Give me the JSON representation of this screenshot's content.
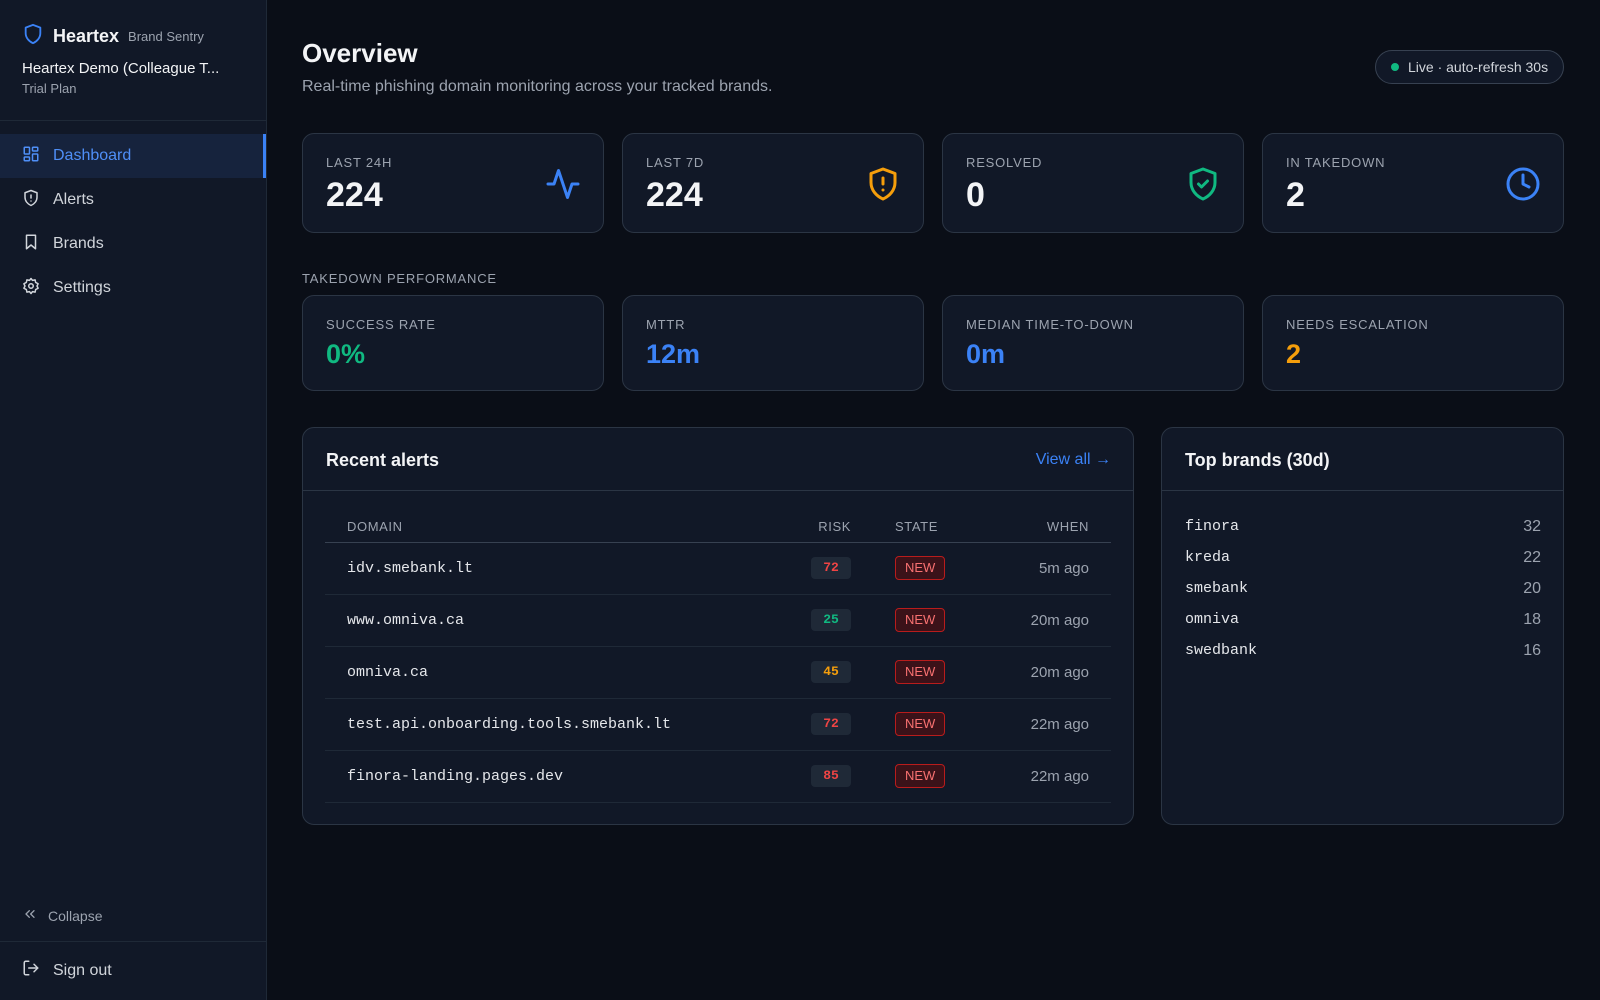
{
  "sidebar": {
    "brand_name": "Heartex",
    "brand_sub": "Brand Sentry",
    "org_name": "Heartex Demo (Colleague T...",
    "plan": "Trial Plan",
    "nav": [
      {
        "label": "Dashboard",
        "icon": "dashboard-icon",
        "active": true
      },
      {
        "label": "Alerts",
        "icon": "shield-alert-icon",
        "active": false
      },
      {
        "label": "Brands",
        "icon": "bookmark-icon",
        "active": false
      },
      {
        "label": "Settings",
        "icon": "gear-icon",
        "active": false
      }
    ],
    "collapse_label": "Collapse",
    "signout_label": "Sign out"
  },
  "header": {
    "title": "Overview",
    "subtitle": "Real-time phishing domain monitoring across your tracked brands.",
    "live_label": "Live · auto-refresh 30s"
  },
  "stats": [
    {
      "label": "LAST 24H",
      "value": "224",
      "icon": "activity-icon",
      "color": "#3b82f6"
    },
    {
      "label": "LAST 7D",
      "value": "224",
      "icon": "shield-alert-icon",
      "color": "#f59e0b"
    },
    {
      "label": "RESOLVED",
      "value": "0",
      "icon": "shield-check-icon",
      "color": "#10b981"
    },
    {
      "label": "IN TAKEDOWN",
      "value": "2",
      "icon": "clock-icon",
      "color": "#3b82f6"
    }
  ],
  "takedown": {
    "section_label": "TAKEDOWN PERFORMANCE",
    "metrics": [
      {
        "label": "SUCCESS RATE",
        "value": "0%",
        "color": "#10b981"
      },
      {
        "label": "MTTR",
        "value": "12m",
        "color": "#3b82f6"
      },
      {
        "label": "MEDIAN TIME-TO-DOWN",
        "value": "0m",
        "color": "#3b82f6"
      },
      {
        "label": "NEEDS ESCALATION",
        "value": "2",
        "color": "#f59e0b"
      }
    ]
  },
  "recent_alerts": {
    "title": "Recent alerts",
    "view_all": "View all →",
    "columns": [
      "DOMAIN",
      "RISK",
      "STATE",
      "WHEN"
    ],
    "rows": [
      {
        "domain": "idv.smebank.lt",
        "risk": "72",
        "risk_color": "#ef4444",
        "state": "NEW",
        "when": "5m ago"
      },
      {
        "domain": "www.omniva.ca",
        "risk": "25",
        "risk_color": "#10b981",
        "state": "NEW",
        "when": "20m ago"
      },
      {
        "domain": "omniva.ca",
        "risk": "45",
        "risk_color": "#f59e0b",
        "state": "NEW",
        "when": "20m ago"
      },
      {
        "domain": "test.api.onboarding.tools.smebank.lt",
        "risk": "72",
        "risk_color": "#ef4444",
        "state": "NEW",
        "when": "22m ago"
      },
      {
        "domain": "finora-landing.pages.dev",
        "risk": "85",
        "risk_color": "#ef4444",
        "state": "NEW",
        "when": "22m ago"
      }
    ]
  },
  "top_brands": {
    "title": "Top brands (30d)",
    "items": [
      {
        "name": "finora",
        "count": "32"
      },
      {
        "name": "kreda",
        "count": "22"
      },
      {
        "name": "smebank",
        "count": "20"
      },
      {
        "name": "omniva",
        "count": "18"
      },
      {
        "name": "swedbank",
        "count": "16"
      }
    ]
  }
}
